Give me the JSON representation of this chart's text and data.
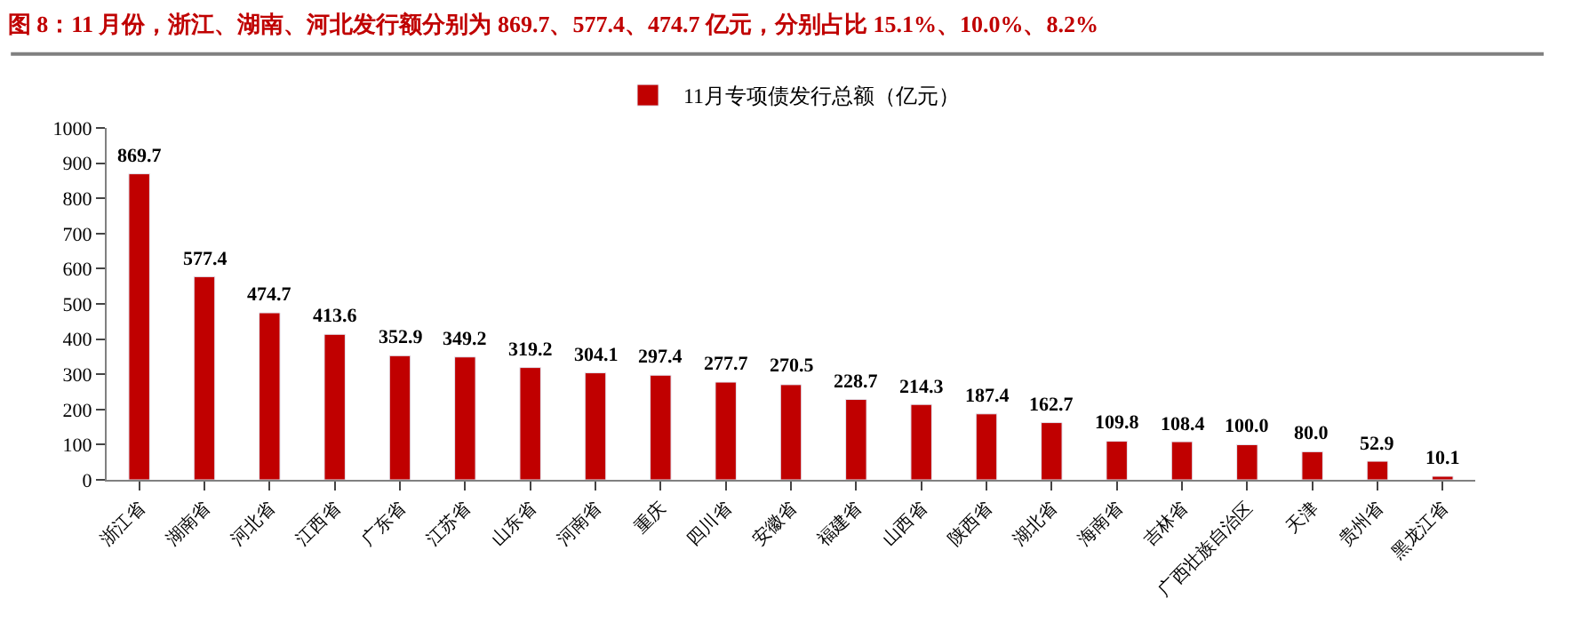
{
  "chart_data": {
    "type": "bar",
    "title": "图 8：11 月份，浙江、湖南、河北发行额分别为 869.7、577.4、474.7 亿元，分别占比 15.1%、10.0%、8.2%",
    "categories": [
      "浙江省",
      "湖南省",
      "河北省",
      "江西省",
      "广东省",
      "江苏省",
      "山东省",
      "河南省",
      "重庆",
      "四川省",
      "安徽省",
      "福建省",
      "山西省",
      "陕西省",
      "湖北省",
      "海南省",
      "吉林省",
      "广西壮族自治区",
      "天津",
      "贵州省",
      "黑龙江省"
    ],
    "series": [
      {
        "name": "11月专项债发行总额（亿元）",
        "color": "#c00000",
        "values": [
          869.7,
          577.4,
          474.7,
          413.6,
          352.9,
          349.2,
          319.2,
          304.1,
          297.4,
          277.7,
          270.5,
          228.7,
          214.3,
          187.4,
          162.7,
          109.8,
          108.4,
          100.0,
          80.0,
          52.9,
          10.1
        ]
      }
    ],
    "ylim": [
      0,
      1000
    ],
    "yticks": [
      0,
      100,
      200,
      300,
      400,
      500,
      600,
      700,
      800,
      900,
      1000
    ],
    "value_labels": [
      "869.7",
      "577.4",
      "474.7",
      "413.6",
      "352.9",
      "349.2",
      "319.2",
      "304.1",
      "297.4",
      "277.7",
      "270.5",
      "228.7",
      "214.3",
      "187.4",
      "162.7",
      "109.8",
      "108.4",
      "100.0",
      "80.0",
      "52.9",
      "10.1"
    ],
    "legend": "top"
  }
}
